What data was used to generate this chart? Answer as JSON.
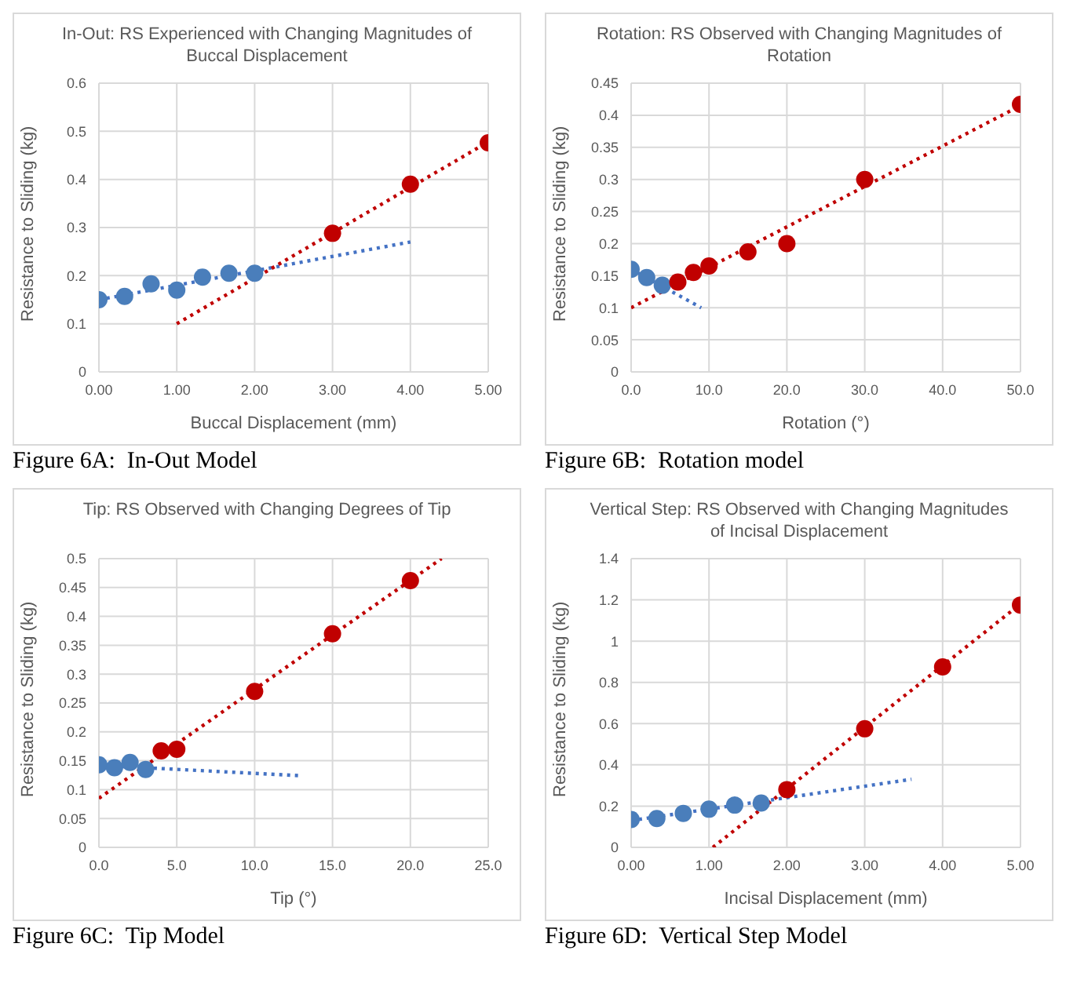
{
  "chart_data": [
    {
      "type": "scatter",
      "title": "In-Out:  RS Experienced with Changing Magnitudes of Buccal Displacement",
      "xlabel": "Buccal Displacement (mm)",
      "ylabel": "Resistance to Sliding (kg)",
      "xlim": [
        0,
        5
      ],
      "xticks": [
        {
          "value": 0,
          "label": "0.00"
        },
        {
          "value": 1,
          "label": "1.00"
        },
        {
          "value": 2,
          "label": "2.00"
        },
        {
          "value": 3,
          "label": "3.00"
        },
        {
          "value": 4,
          "label": "4.00"
        },
        {
          "value": 5,
          "label": "5.00"
        }
      ],
      "ylim": [
        0,
        0.6
      ],
      "yticks": [
        0,
        0.1,
        0.2,
        0.3,
        0.4,
        0.5,
        0.6
      ],
      "grid": true,
      "marker": "circle",
      "annotations": [
        "Figure 6A:  In-Out Model"
      ],
      "series": [
        {
          "type": "line",
          "color": "#4472c4",
          "line_style": "dotted",
          "marker": "none",
          "x": [
            0,
            4
          ],
          "values": [
            0.15,
            0.27
          ]
        },
        {
          "type": "line",
          "color": "#c00000",
          "line_style": "dotted",
          "marker": "none",
          "x": [
            1,
            5
          ],
          "values": [
            0.1,
            0.478
          ]
        },
        {
          "color": "#4a7ebb",
          "x": [
            0,
            0.33,
            0.67,
            1,
            1.33,
            1.67,
            2
          ],
          "values": [
            0.15,
            0.157,
            0.183,
            0.17,
            0.197,
            0.205,
            0.205
          ]
        },
        {
          "color": "#c00000",
          "x": [
            3,
            4,
            5
          ],
          "values": [
            0.288,
            0.39,
            0.476
          ]
        }
      ]
    },
    {
      "type": "scatter",
      "title": "Rotation:  RS Observed with Changing Magnitudes of Rotation",
      "xlabel": "Rotation (°)",
      "ylabel": "Resistance to Sliding (kg)",
      "xlim": [
        0,
        50
      ],
      "xticks": [
        {
          "value": 0,
          "label": "0.0"
        },
        {
          "value": 10,
          "label": "10.0"
        },
        {
          "value": 20,
          "label": "20.0"
        },
        {
          "value": 30,
          "label": "30.0"
        },
        {
          "value": 40,
          "label": "40.0"
        },
        {
          "value": 50,
          "label": "50.0"
        }
      ],
      "ylim": [
        0,
        0.45
      ],
      "yticks": [
        0,
        0.05,
        0.1,
        0.15,
        0.2,
        0.25,
        0.3,
        0.35,
        0.4,
        0.45
      ],
      "grid": true,
      "marker": "circle",
      "annotations": [
        "Figure 6B:  Rotation model"
      ],
      "series": [
        {
          "type": "line",
          "color": "#4472c4",
          "line_style": "dotted",
          "marker": "none",
          "x": [
            0,
            9
          ],
          "values": [
            0.16,
            0.1
          ]
        },
        {
          "type": "line",
          "color": "#c00000",
          "line_style": "dotted",
          "marker": "none",
          "x": [
            0,
            50
          ],
          "values": [
            0.1,
            0.415
          ]
        },
        {
          "color": "#4a7ebb",
          "x": [
            0,
            2,
            4
          ],
          "values": [
            0.16,
            0.147,
            0.135
          ]
        },
        {
          "color": "#c00000",
          "x": [
            6,
            8,
            10,
            15,
            20,
            30,
            50
          ],
          "values": [
            0.14,
            0.155,
            0.165,
            0.187,
            0.2,
            0.3,
            0.417
          ]
        }
      ]
    },
    {
      "type": "scatter",
      "title": "Tip:  RS Observed with Changing Degrees of Tip",
      "xlabel": "Tip (°)",
      "ylabel": "Resistance to Sliding (kg)",
      "xlim": [
        0,
        25
      ],
      "xticks": [
        {
          "value": 0,
          "label": "0.0"
        },
        {
          "value": 5,
          "label": "5.0"
        },
        {
          "value": 10,
          "label": "10.0"
        },
        {
          "value": 15,
          "label": "15.0"
        },
        {
          "value": 20,
          "label": "20.0"
        },
        {
          "value": 25,
          "label": "25.0"
        }
      ],
      "ylim": [
        0,
        0.5
      ],
      "yticks": [
        0,
        0.05,
        0.1,
        0.15,
        0.2,
        0.25,
        0.3,
        0.35,
        0.4,
        0.45,
        0.5
      ],
      "grid": true,
      "marker": "circle",
      "annotations": [
        "Figure 6C:  Tip Model"
      ],
      "series": [
        {
          "type": "line",
          "color": "#4472c4",
          "line_style": "dotted",
          "marker": "none",
          "x": [
            0,
            13
          ],
          "values": [
            0.142,
            0.124
          ]
        },
        {
          "type": "line",
          "color": "#c00000",
          "line_style": "dotted",
          "marker": "none",
          "x": [
            0,
            22
          ],
          "values": [
            0.085,
            0.5
          ]
        },
        {
          "color": "#4a7ebb",
          "x": [
            0,
            1,
            2,
            3
          ],
          "values": [
            0.143,
            0.138,
            0.147,
            0.135
          ]
        },
        {
          "color": "#c00000",
          "x": [
            4,
            5,
            10,
            15,
            20
          ],
          "values": [
            0.167,
            0.17,
            0.27,
            0.37,
            0.462
          ]
        }
      ]
    },
    {
      "type": "scatter",
      "title": "Vertical Step:  RS Observed with Changing Magnitudes of Incisal Displacement",
      "xlabel": "Incisal Displacement (mm)",
      "ylabel": "Resistance to Sliding (kg)",
      "xlim": [
        0,
        5
      ],
      "xticks": [
        {
          "value": 0,
          "label": "0.00"
        },
        {
          "value": 1,
          "label": "1.00"
        },
        {
          "value": 2,
          "label": "2.00"
        },
        {
          "value": 3,
          "label": "3.00"
        },
        {
          "value": 4,
          "label": "4.00"
        },
        {
          "value": 5,
          "label": "5.00"
        }
      ],
      "ylim": [
        0,
        1.4
      ],
      "yticks": [
        0,
        0.2,
        0.4,
        0.6,
        0.8,
        1,
        1.2,
        1.4
      ],
      "grid": true,
      "marker": "circle",
      "annotations": [
        "Figure 6D:  Vertical Step Model"
      ],
      "series": [
        {
          "type": "line",
          "color": "#4472c4",
          "line_style": "dotted",
          "marker": "none",
          "x": [
            0,
            3.6
          ],
          "values": [
            0.13,
            0.33
          ]
        },
        {
          "type": "line",
          "color": "#c00000",
          "line_style": "dotted",
          "marker": "none",
          "x": [
            1.05,
            5
          ],
          "values": [
            0,
            1.18
          ]
        },
        {
          "color": "#4a7ebb",
          "x": [
            0,
            0.33,
            0.67,
            1,
            1.33,
            1.67
          ],
          "values": [
            0.135,
            0.14,
            0.165,
            0.185,
            0.205,
            0.215
          ]
        },
        {
          "color": "#c00000",
          "x": [
            2,
            3,
            4,
            5
          ],
          "values": [
            0.28,
            0.575,
            0.875,
            1.175
          ]
        }
      ]
    }
  ]
}
